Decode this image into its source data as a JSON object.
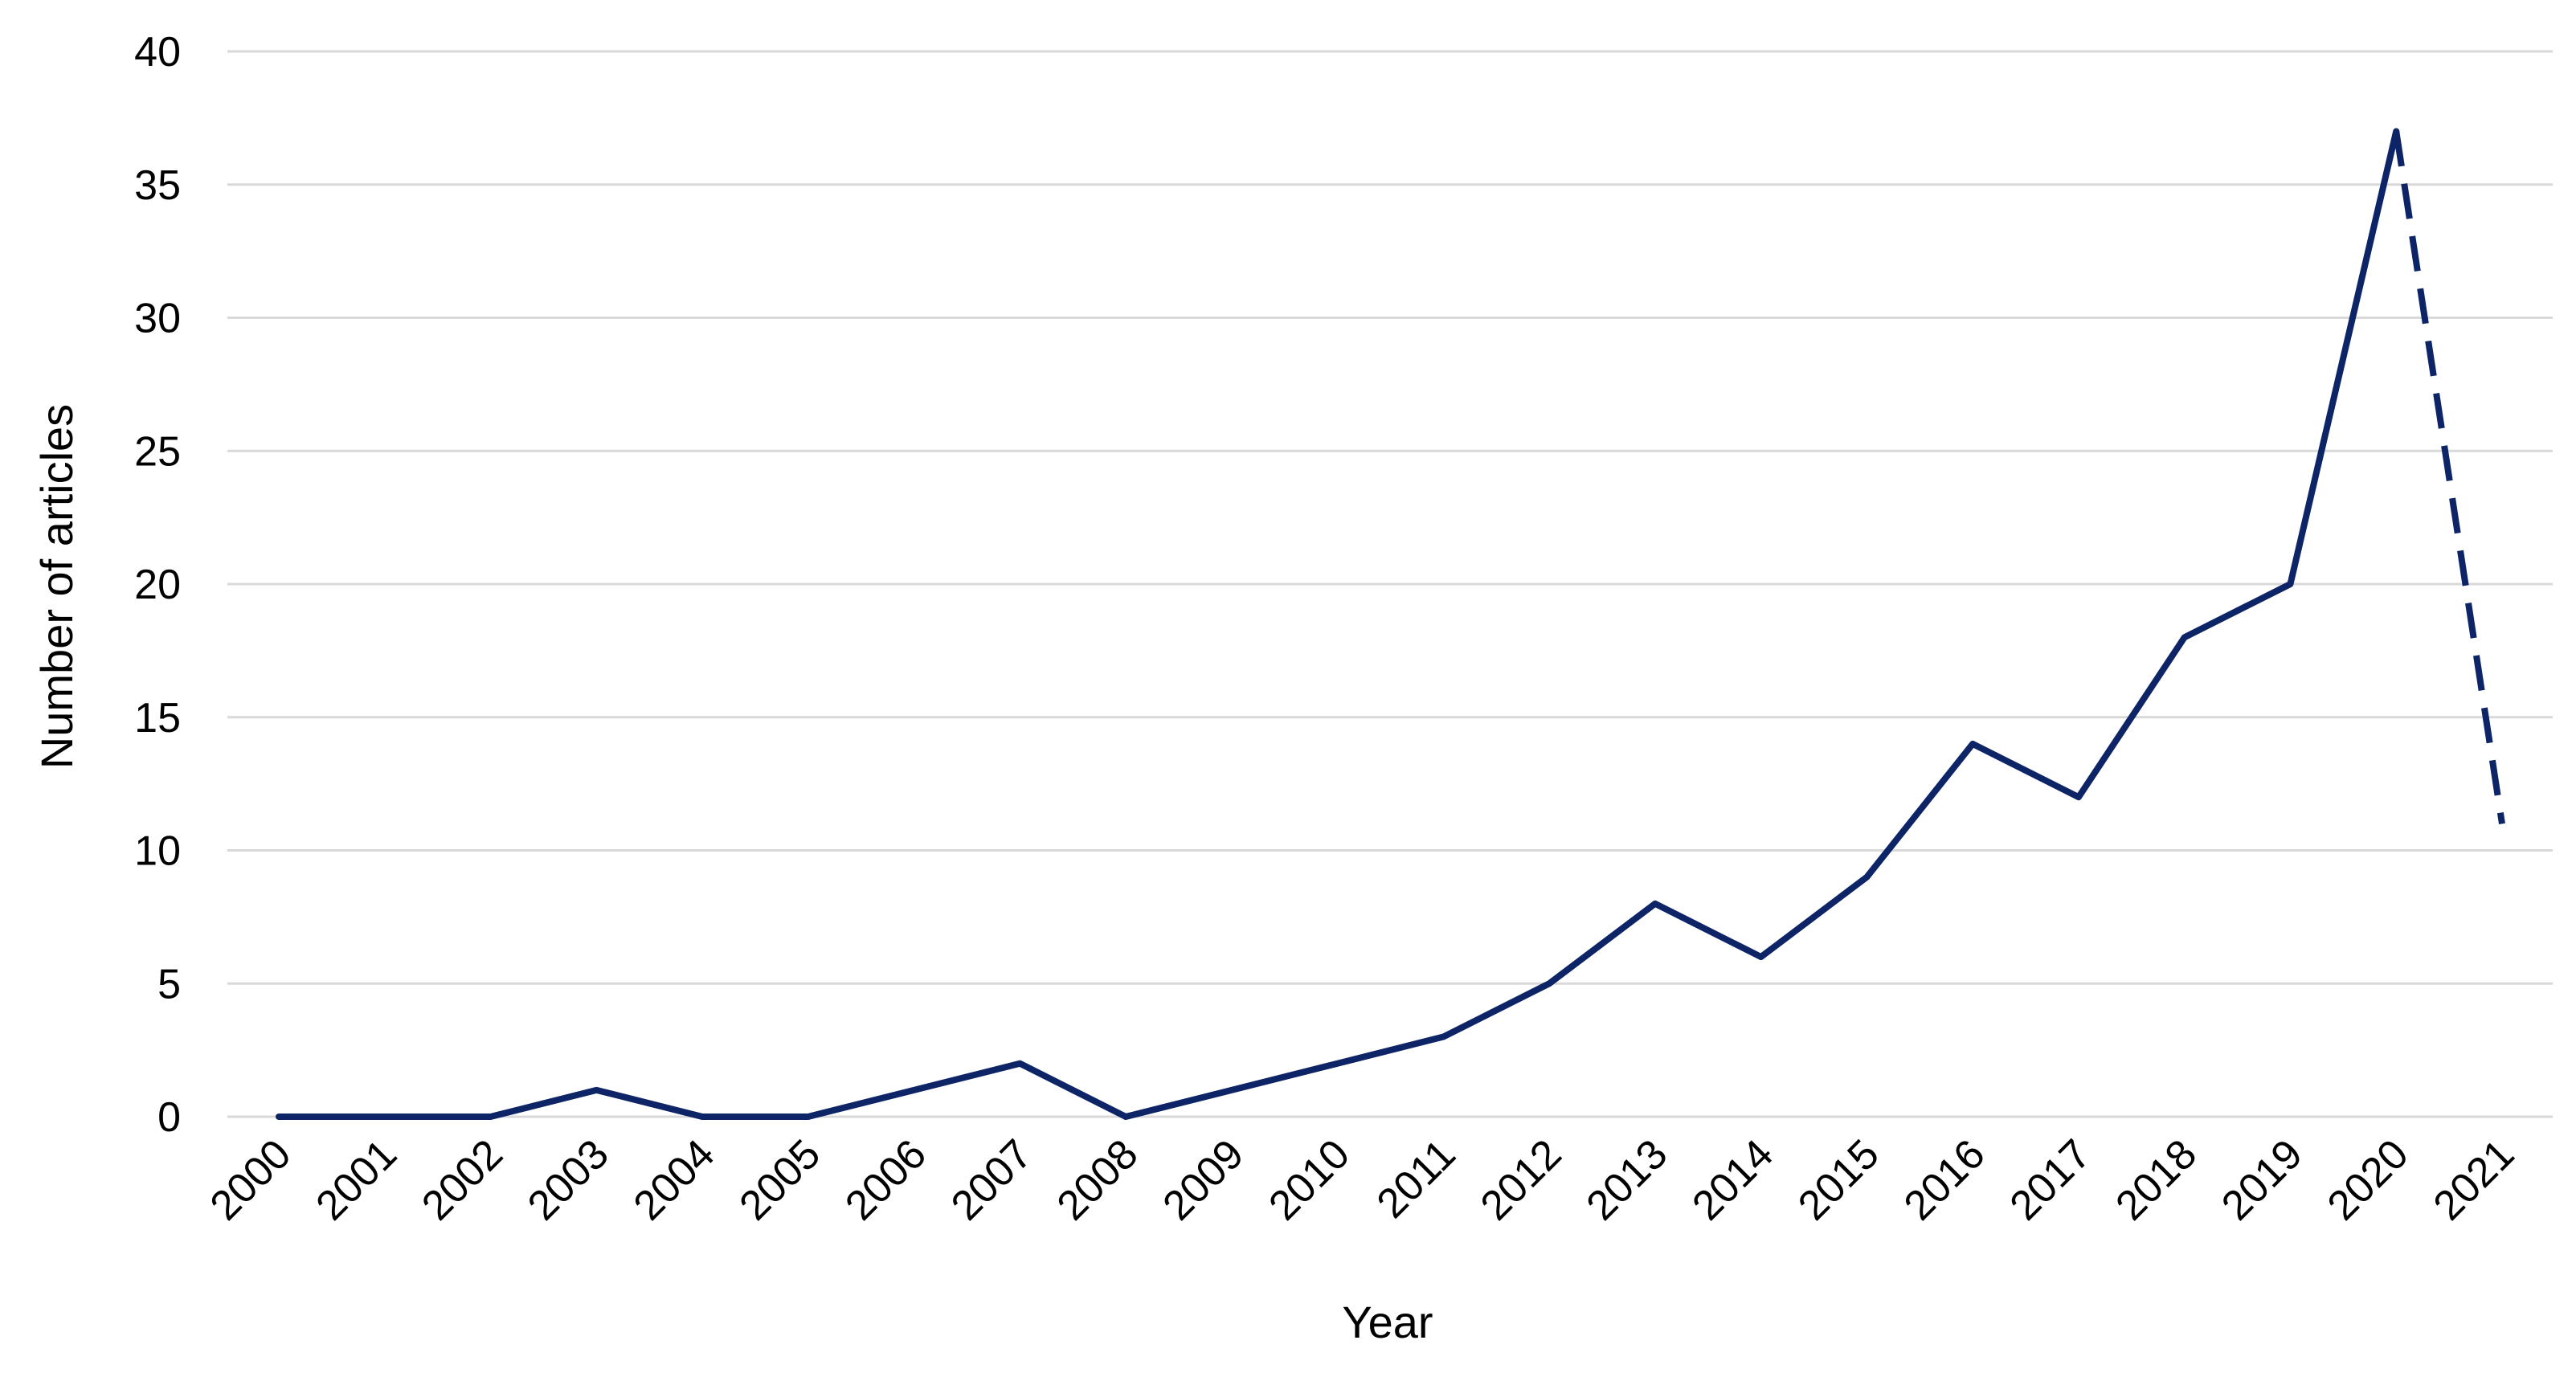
{
  "chart_data": {
    "type": "line",
    "title": "",
    "xlabel": "Year",
    "ylabel": "Number of articles",
    "categories": [
      "2000",
      "2001",
      "2002",
      "2003",
      "2004",
      "2005",
      "2006",
      "2007",
      "2008",
      "2009",
      "2010",
      "2011",
      "2012",
      "2013",
      "2014",
      "2015",
      "2016",
      "2017",
      "2018",
      "2019",
      "2020",
      "2021"
    ],
    "yticks": [
      "0",
      "5",
      "10",
      "15",
      "20",
      "25",
      "30",
      "35",
      "40"
    ],
    "ylim": [
      0,
      40
    ],
    "grid": "horizontal",
    "legend": "none",
    "color": "#0d2466",
    "series": [
      {
        "values": [
          0,
          0,
          0,
          1,
          0,
          0,
          1,
          2,
          0,
          1,
          2,
          3,
          5,
          8,
          6,
          9,
          14,
          12,
          18,
          20,
          37,
          11
        ],
        "dashed_segment": [
          "2020",
          "2021"
        ]
      }
    ]
  }
}
